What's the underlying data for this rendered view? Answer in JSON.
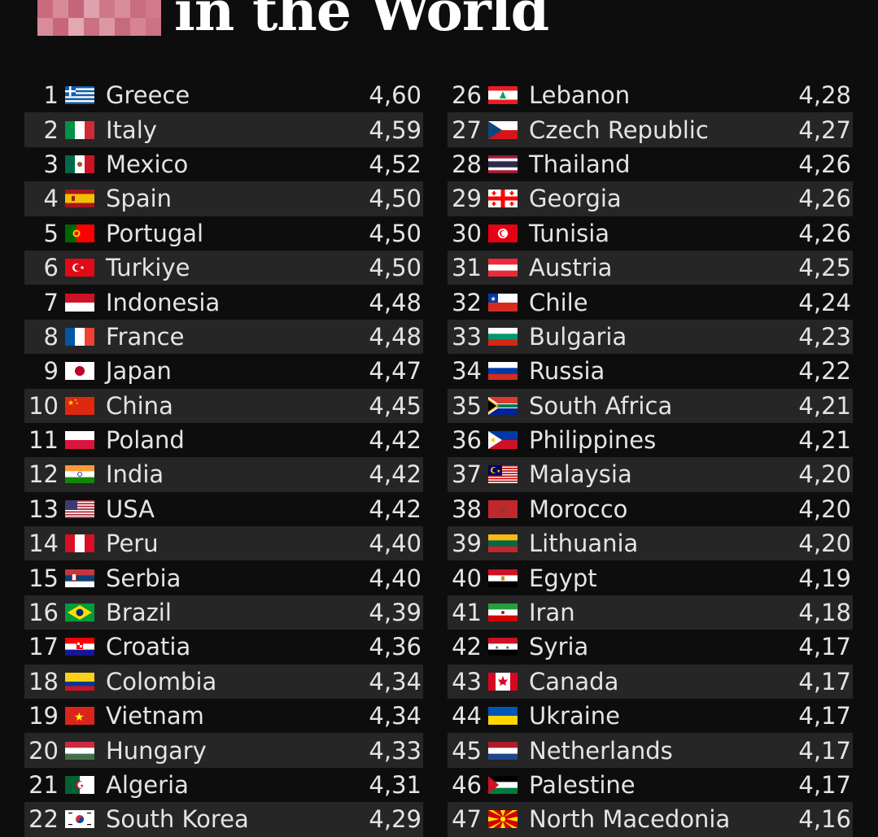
{
  "title": {
    "text": "in the World"
  },
  "left_rows": [
    {
      "rank": "1",
      "country": "Greece",
      "score": "4,60",
      "flag": "greece-flag-icon"
    },
    {
      "rank": "2",
      "country": "Italy",
      "score": "4,59",
      "flag": "italy-flag-icon"
    },
    {
      "rank": "3",
      "country": "Mexico",
      "score": "4,52",
      "flag": "mexico-flag-icon"
    },
    {
      "rank": "4",
      "country": "Spain",
      "score": "4,50",
      "flag": "spain-flag-icon"
    },
    {
      "rank": "5",
      "country": "Portugal",
      "score": "4,50",
      "flag": "portugal-flag-icon"
    },
    {
      "rank": "6",
      "country": "Turkiye",
      "score": "4,50",
      "flag": "turkiye-flag-icon"
    },
    {
      "rank": "7",
      "country": "Indonesia",
      "score": "4,48",
      "flag": "indonesia-flag-icon"
    },
    {
      "rank": "8",
      "country": "France",
      "score": "4,48",
      "flag": "france-flag-icon"
    },
    {
      "rank": "9",
      "country": "Japan",
      "score": "4,47",
      "flag": "japan-flag-icon"
    },
    {
      "rank": "10",
      "country": "China",
      "score": "4,45",
      "flag": "china-flag-icon"
    },
    {
      "rank": "11",
      "country": "Poland",
      "score": "4,42",
      "flag": "poland-flag-icon"
    },
    {
      "rank": "12",
      "country": "India",
      "score": "4,42",
      "flag": "india-flag-icon"
    },
    {
      "rank": "13",
      "country": "USA",
      "score": "4,42",
      "flag": "usa-flag-icon"
    },
    {
      "rank": "14",
      "country": "Peru",
      "score": "4,40",
      "flag": "peru-flag-icon"
    },
    {
      "rank": "15",
      "country": "Serbia",
      "score": "4,40",
      "flag": "serbia-flag-icon"
    },
    {
      "rank": "16",
      "country": "Brazil",
      "score": "4,39",
      "flag": "brazil-flag-icon"
    },
    {
      "rank": "17",
      "country": "Croatia",
      "score": "4,36",
      "flag": "croatia-flag-icon"
    },
    {
      "rank": "18",
      "country": "Colombia",
      "score": "4,34",
      "flag": "colombia-flag-icon"
    },
    {
      "rank": "19",
      "country": "Vietnam",
      "score": "4,34",
      "flag": "vietnam-flag-icon"
    },
    {
      "rank": "20",
      "country": "Hungary",
      "score": "4,33",
      "flag": "hungary-flag-icon"
    },
    {
      "rank": "21",
      "country": "Algeria",
      "score": "4,31",
      "flag": "algeria-flag-icon"
    },
    {
      "rank": "22",
      "country": "South Korea",
      "score": "4,29",
      "flag": "south-korea-flag-icon"
    }
  ],
  "right_rows": [
    {
      "rank": "26",
      "country": "Lebanon",
      "score": "4,28",
      "flag": "lebanon-flag-icon"
    },
    {
      "rank": "27",
      "country": "Czech Republic",
      "score": "4,27",
      "flag": "czech-flag-icon"
    },
    {
      "rank": "28",
      "country": "Thailand",
      "score": "4,26",
      "flag": "thailand-flag-icon"
    },
    {
      "rank": "29",
      "country": "Georgia",
      "score": "4,26",
      "flag": "georgia-flag-icon"
    },
    {
      "rank": "30",
      "country": "Tunisia",
      "score": "4,26",
      "flag": "tunisia-flag-icon"
    },
    {
      "rank": "31",
      "country": "Austria",
      "score": "4,25",
      "flag": "austria-flag-icon"
    },
    {
      "rank": "32",
      "country": "Chile",
      "score": "4,24",
      "flag": "chile-flag-icon"
    },
    {
      "rank": "33",
      "country": "Bulgaria",
      "score": "4,23",
      "flag": "bulgaria-flag-icon"
    },
    {
      "rank": "34",
      "country": "Russia",
      "score": "4,22",
      "flag": "russia-flag-icon"
    },
    {
      "rank": "35",
      "country": "South Africa",
      "score": "4,21",
      "flag": "south-africa-flag-icon"
    },
    {
      "rank": "36",
      "country": "Philippines",
      "score": "4,21",
      "flag": "philippines-flag-icon"
    },
    {
      "rank": "37",
      "country": "Malaysia",
      "score": "4,20",
      "flag": "malaysia-flag-icon"
    },
    {
      "rank": "38",
      "country": "Morocco",
      "score": "4,20",
      "flag": "morocco-flag-icon"
    },
    {
      "rank": "39",
      "country": "Lithuania",
      "score": "4,20",
      "flag": "lithuania-flag-icon"
    },
    {
      "rank": "40",
      "country": "Egypt",
      "score": "4,19",
      "flag": "egypt-flag-icon"
    },
    {
      "rank": "41",
      "country": "Iran",
      "score": "4,18",
      "flag": "iran-flag-icon"
    },
    {
      "rank": "42",
      "country": "Syria",
      "score": "4,17",
      "flag": "syria-flag-icon"
    },
    {
      "rank": "43",
      "country": "Canada",
      "score": "4,17",
      "flag": "canada-flag-icon"
    },
    {
      "rank": "44",
      "country": "Ukraine",
      "score": "4,17",
      "flag": "ukraine-flag-icon"
    },
    {
      "rank": "45",
      "country": "Netherlands",
      "score": "4,17",
      "flag": "netherlands-flag-icon"
    },
    {
      "rank": "46",
      "country": "Palestine",
      "score": "4,17",
      "flag": "palestine-flag-icon"
    },
    {
      "rank": "47",
      "country": "North Macedonia",
      "score": "4,16",
      "flag": "north-macedonia-flag-icon"
    }
  ],
  "colors": {
    "background": "#0d0d0d",
    "alt_row": "#262626",
    "text": "#e4e4e4",
    "title": "#ffffff"
  }
}
